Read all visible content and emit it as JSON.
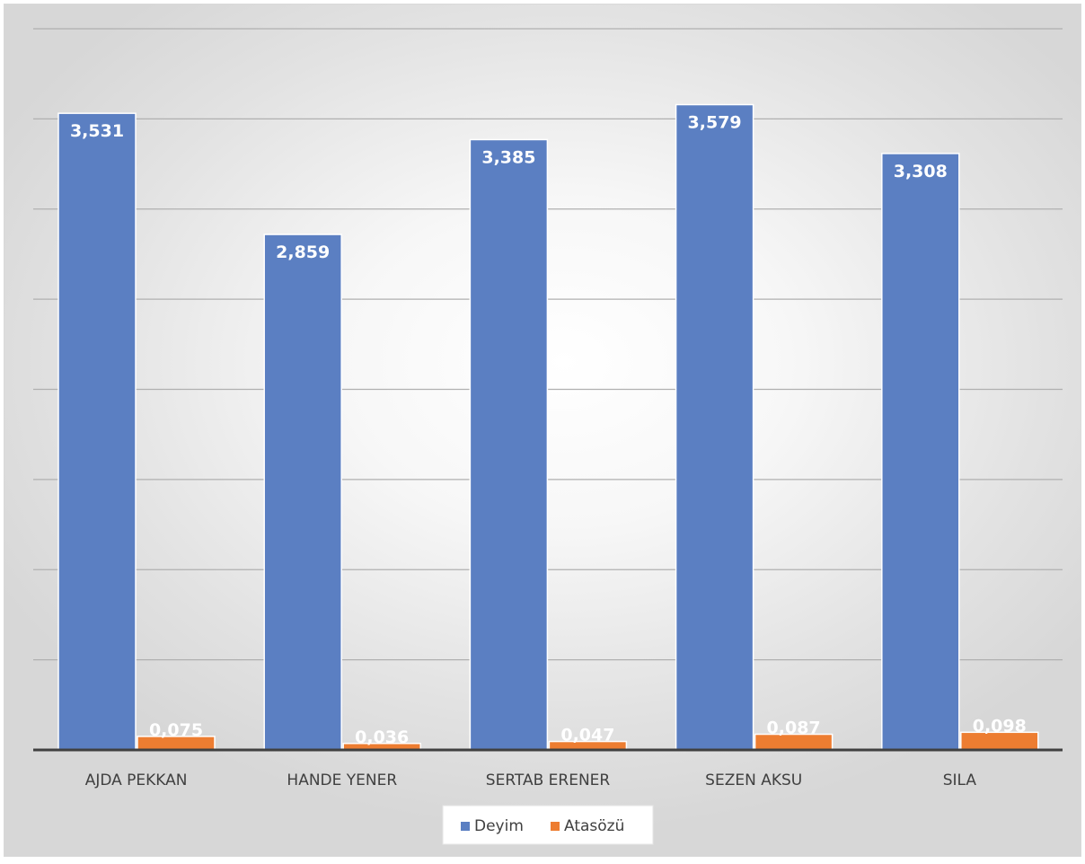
{
  "chart_data": {
    "type": "bar",
    "categories": [
      "AJDA PEKKAN",
      "HANDE YENER",
      "SERTAB ERENER",
      "SEZEN AKSU",
      "SILA"
    ],
    "series": [
      {
        "name": "Deyim",
        "values": [
          3.531,
          2.859,
          3.385,
          3.579,
          3.308
        ],
        "labels": [
          "3,531",
          "2,859",
          "3,385",
          "3,579",
          "3,308"
        ],
        "color": "#5b7fc2"
      },
      {
        "name": "Atasözü",
        "values": [
          0.075,
          0.036,
          0.047,
          0.087,
          0.098
        ],
        "labels": [
          "0,075",
          "0,036",
          "0,047",
          "0,087",
          "0,098"
        ],
        "color": "#ed7d31"
      }
    ],
    "title": "",
    "xlabel": "",
    "ylabel": "",
    "ylim": [
      0,
      4.0
    ],
    "y_gridline_step": 0.5,
    "y_tick_labels_visible": false,
    "grid": true,
    "legend": "bottom",
    "colors": {
      "axis": "#404040",
      "grid": "#b0b0b0",
      "text": "#404040"
    }
  }
}
